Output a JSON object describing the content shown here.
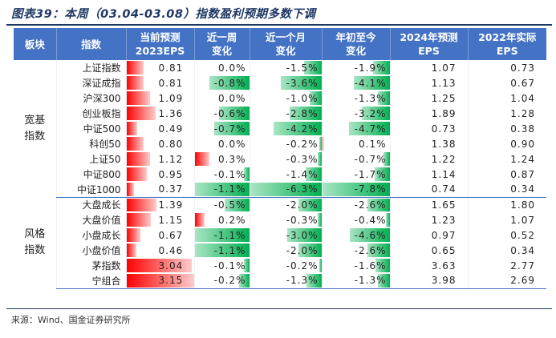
{
  "title": "图表39：本周（03.04-03.08）指数盈利预期多数下调",
  "source": "来源：Wind、国金证券研究所",
  "colors": {
    "header_bg": "#4472c4",
    "up_red": "#ff0000",
    "down_green": "#00b050",
    "title": "#1f3864"
  },
  "columns": [
    "板块",
    "指数",
    "当前预测\n2023EPS",
    "近一周\n变化",
    "近一个月\n变化",
    "年初至今\n变化",
    "2024年预测\nEPS",
    "2022年实际\nEPS"
  ],
  "groups": [
    {
      "label": "宽基\n指数",
      "rows": [
        {
          "name": "上证指数",
          "eps2023": "0.81",
          "week": "0.0%",
          "month": "-1.5%",
          "ytd": "-1.9%",
          "eps2024": "1.07",
          "eps2022": "0.73"
        },
        {
          "name": "深证成指",
          "eps2023": "0.81",
          "week": "-0.8%",
          "month": "-3.6%",
          "ytd": "-4.1%",
          "eps2024": "1.13",
          "eps2022": "0.67"
        },
        {
          "name": "沪深300",
          "eps2023": "1.09",
          "week": "0.0%",
          "month": "-1.0%",
          "ytd": "-1.3%",
          "eps2024": "1.25",
          "eps2022": "1.04"
        },
        {
          "name": "创业板指",
          "eps2023": "1.36",
          "week": "-0.6%",
          "month": "-2.8%",
          "ytd": "-3.2%",
          "eps2024": "1.89",
          "eps2022": "1.28"
        },
        {
          "name": "中证500",
          "eps2023": "0.49",
          "week": "-0.7%",
          "month": "-4.2%",
          "ytd": "-4.7%",
          "eps2024": "0.73",
          "eps2022": "0.38"
        },
        {
          "name": "科创50",
          "eps2023": "0.80",
          "week": "0.0%",
          "month": "-0.2%",
          "ytd": "0.1%",
          "eps2024": "1.38",
          "eps2022": "0.90"
        },
        {
          "name": "上证50",
          "eps2023": "1.12",
          "week": "0.3%",
          "month": "-0.3%",
          "ytd": "-0.7%",
          "eps2024": "1.22",
          "eps2022": "1.24"
        },
        {
          "name": "中证800",
          "eps2023": "0.95",
          "week": "-0.1%",
          "month": "-1.4%",
          "ytd": "-1.7%",
          "eps2024": "1.14",
          "eps2022": "0.87"
        },
        {
          "name": "中证1000",
          "eps2023": "0.37",
          "week": "-1.1%",
          "month": "-6.3%",
          "ytd": "-7.8%",
          "eps2024": "0.74",
          "eps2022": "0.34"
        }
      ]
    },
    {
      "label": "风格\n指数",
      "rows": [
        {
          "name": "大盘成长",
          "eps2023": "1.39",
          "week": "-0.5%",
          "month": "-2.0%",
          "ytd": "-2.6%",
          "eps2024": "1.65",
          "eps2022": "1.80"
        },
        {
          "name": "大盘价值",
          "eps2023": "1.15",
          "week": "0.2%",
          "month": "-0.3%",
          "ytd": "-0.4%",
          "eps2024": "1.23",
          "eps2022": "1.07"
        },
        {
          "name": "小盘成长",
          "eps2023": "0.67",
          "week": "-1.1%",
          "month": "-3.0%",
          "ytd": "-4.6%",
          "eps2024": "0.97",
          "eps2022": "0.52"
        },
        {
          "name": "小盘价值",
          "eps2023": "0.46",
          "week": "-1.1%",
          "month": "-2.0%",
          "ytd": "-2.6%",
          "eps2024": "0.65",
          "eps2022": "0.34"
        },
        {
          "name": "茅指数",
          "eps2023": "3.04",
          "week": "-0.1%",
          "month": "-0.2%",
          "ytd": "-1.6%",
          "eps2024": "3.63",
          "eps2022": "2.77"
        },
        {
          "name": "宁组合",
          "eps2023": "3.15",
          "week": "-0.2%",
          "month": "-1.3%",
          "ytd": "-1.3%",
          "eps2024": "3.98",
          "eps2022": "2.69"
        }
      ]
    }
  ]
}
